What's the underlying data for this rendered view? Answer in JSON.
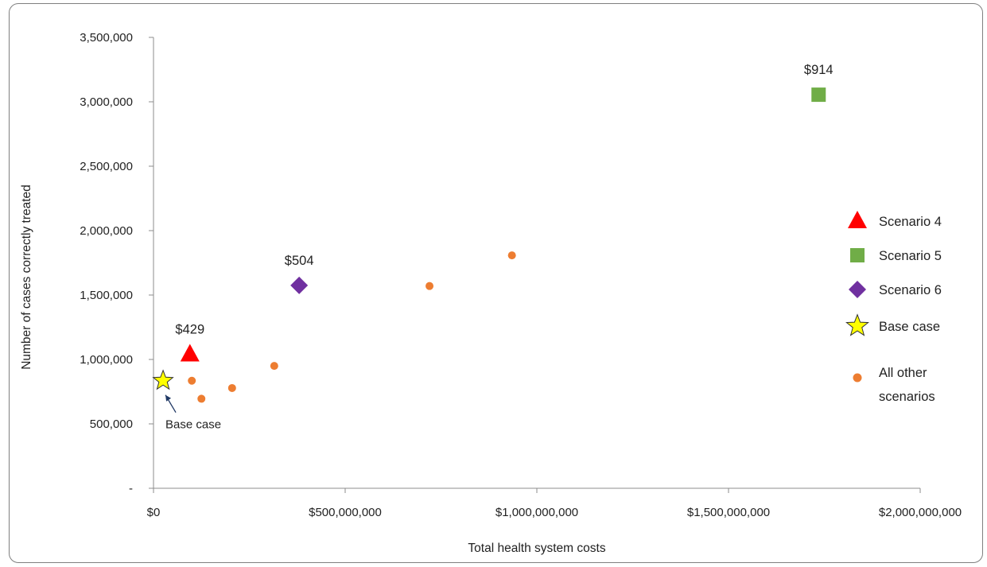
{
  "chart_data": {
    "type": "scatter",
    "title": "",
    "xlabel": "Total health system costs",
    "ylabel": "Number of cases correctly treated",
    "xlim": [
      0,
      2000000000
    ],
    "ylim": [
      0,
      3500000
    ],
    "x_ticks": [
      0,
      500000000,
      1000000000,
      1500000000,
      2000000000
    ],
    "x_tick_labels": [
      "$0",
      "$500,000,000",
      "$1,000,000,000",
      "$1,500,000,000",
      "$2,000,000,000"
    ],
    "y_ticks": [
      0,
      500000,
      1000000,
      1500000,
      2000000,
      2500000,
      3000000,
      3500000
    ],
    "y_tick_labels": [
      "-",
      "500,000",
      "1,000,000",
      "1,500,000",
      "2,000,000",
      "2,500,000",
      "3,000,000",
      "3,500,000"
    ],
    "grid": false,
    "legend_position": "right",
    "series": [
      {
        "name": "Scenario 4",
        "marker": "triangle",
        "color": "#ff0000",
        "points": [
          {
            "x": 95000000,
            "y": 1040000,
            "label": "$429"
          }
        ]
      },
      {
        "name": "Scenario 5",
        "marker": "square",
        "color": "#70ad47",
        "points": [
          {
            "x": 1735000000,
            "y": 3055000,
            "label": "$914"
          }
        ]
      },
      {
        "name": "Scenario 6",
        "marker": "diamond",
        "color": "#7030a0",
        "points": [
          {
            "x": 380000000,
            "y": 1575000,
            "label": "$504"
          }
        ]
      },
      {
        "name": "Base case",
        "marker": "star",
        "color": "#ffff00",
        "points": [
          {
            "x": 25000000,
            "y": 835000,
            "label": ""
          }
        ]
      },
      {
        "name": "All other scenarios",
        "marker": "circle",
        "color": "#ed7d31",
        "points": [
          {
            "x": 100000000,
            "y": 835000
          },
          {
            "x": 125000000,
            "y": 695000
          },
          {
            "x": 205000000,
            "y": 778000
          },
          {
            "x": 315000000,
            "y": 950000
          },
          {
            "x": 720000000,
            "y": 1570000
          },
          {
            "x": 935000000,
            "y": 1808000
          }
        ]
      }
    ],
    "annotations": [
      {
        "text": "Base case",
        "points_to": "Base case"
      }
    ]
  }
}
